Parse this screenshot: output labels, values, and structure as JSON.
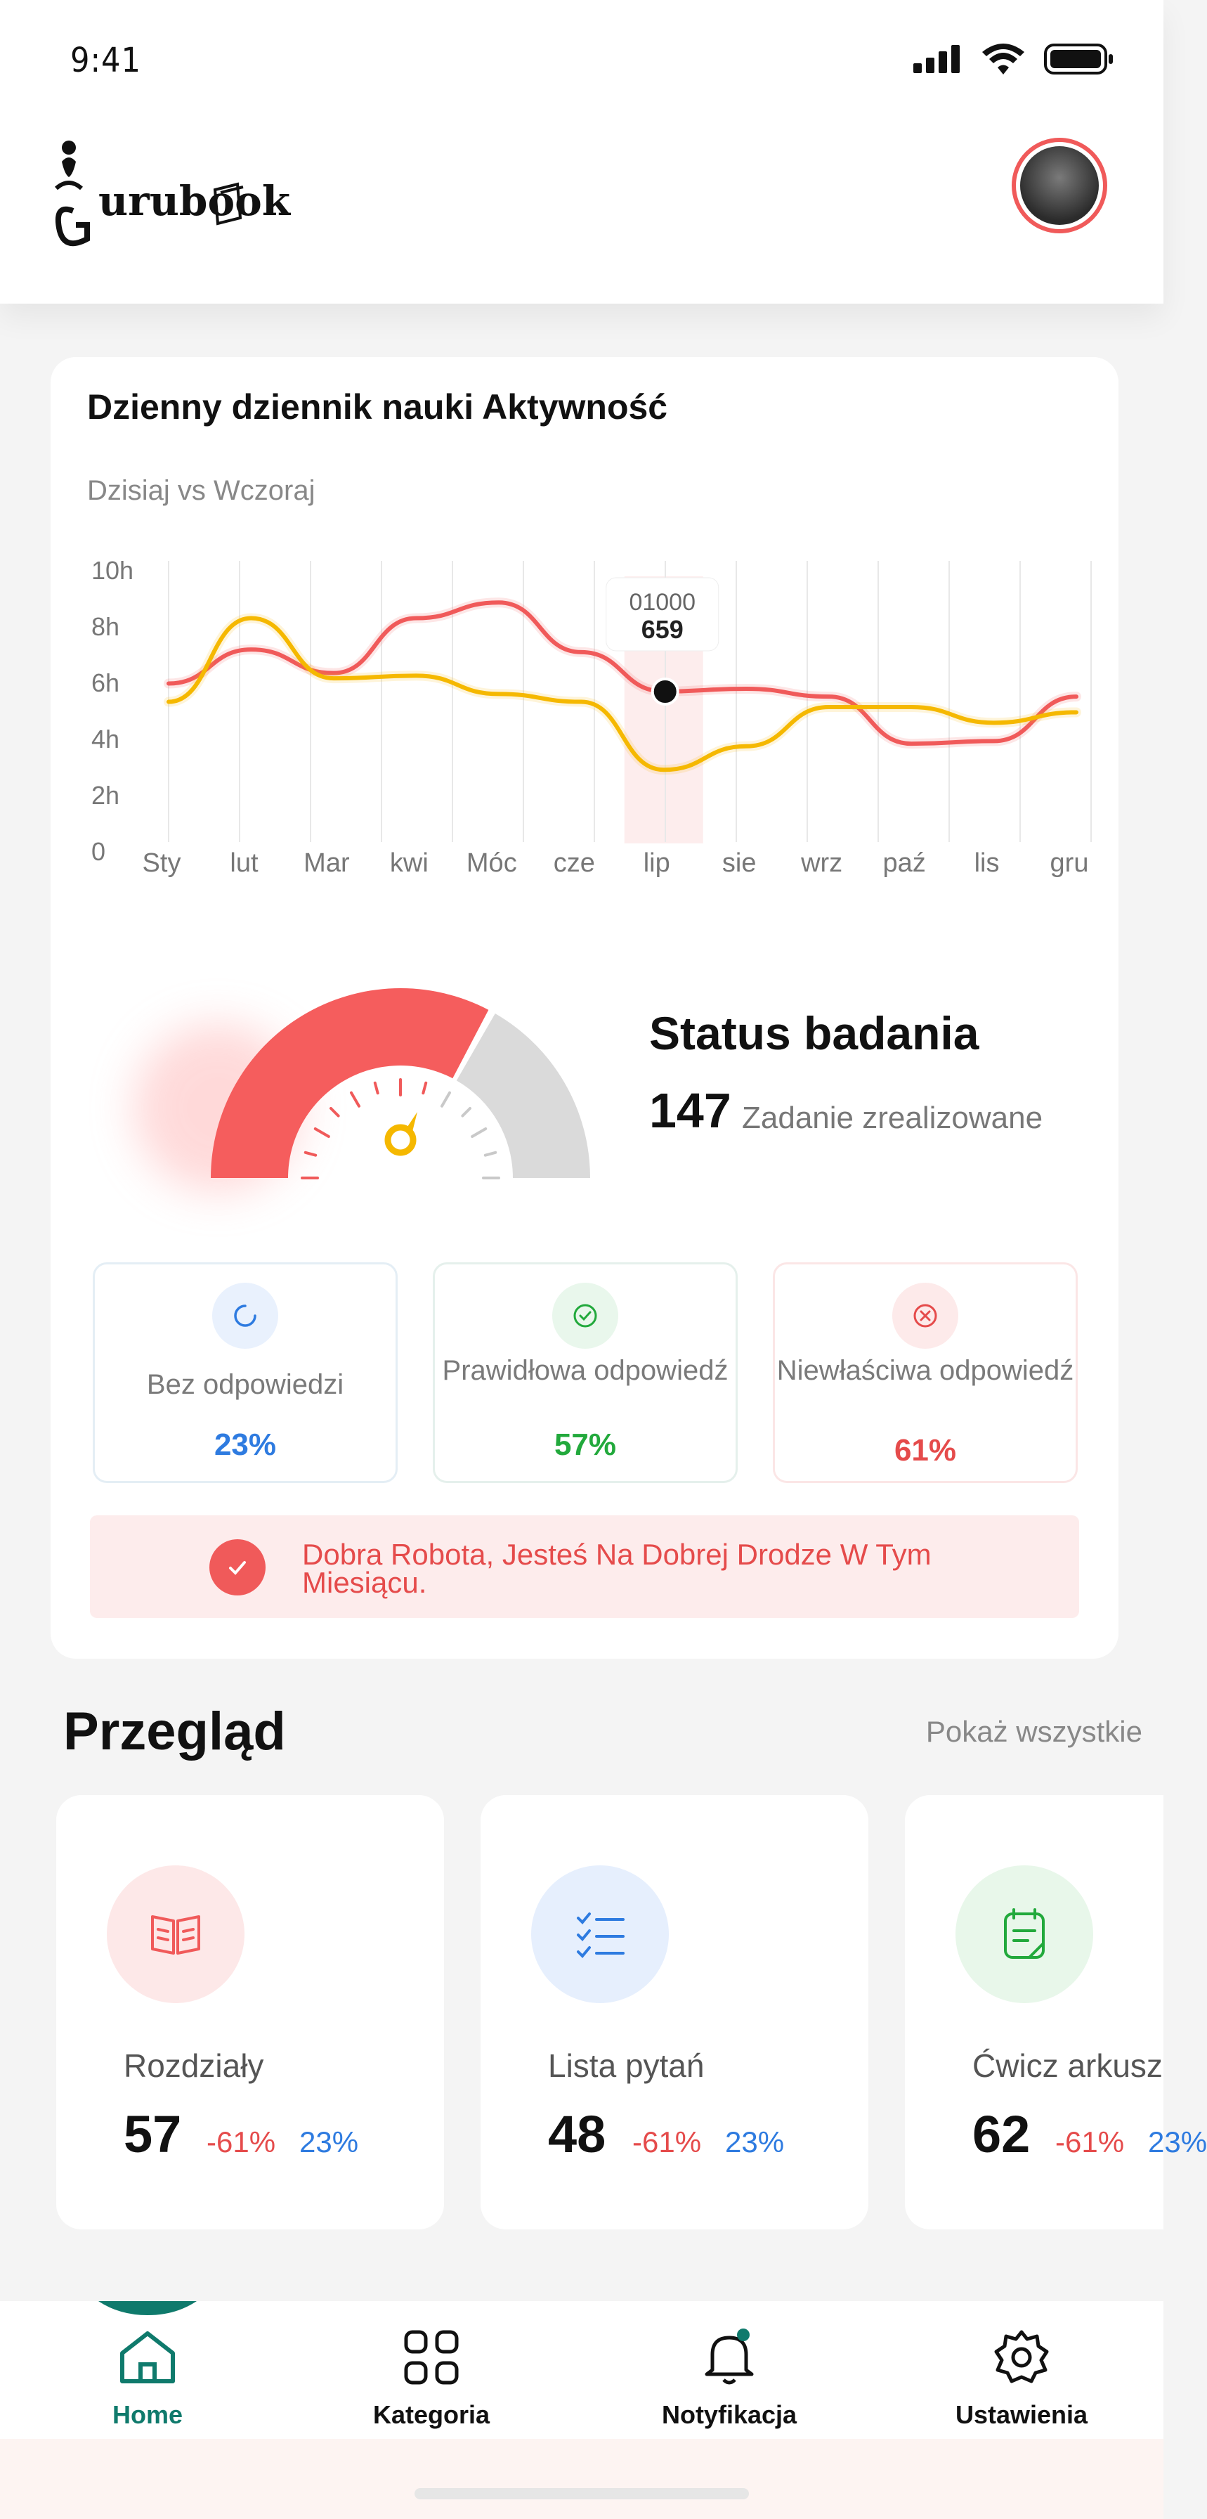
{
  "status_bar": {
    "time": "9:41"
  },
  "header": {
    "logo_text": "urubook"
  },
  "activity": {
    "title": "Dzienny dziennik nauki Aktywność",
    "subtitle": "Dzisiaj vs Wczoraj",
    "tooltip": {
      "line1": "01000",
      "line2": "659"
    }
  },
  "chart_data": {
    "type": "line",
    "title": "Dzienny dziennik nauki Aktywność",
    "subtitle": "Dzisiaj vs Wczoraj",
    "categories": [
      "Sty",
      "lut",
      "Mar",
      "kwi",
      "Móc",
      "cze",
      "lip",
      "sie",
      "wrz",
      "paź",
      "lis",
      "gru"
    ],
    "y_ticks": [
      "10h",
      "8h",
      "6h",
      "4h",
      "2h",
      "0"
    ],
    "ylim": [
      0,
      10
    ],
    "grid": "vertical",
    "series": [
      {
        "color": "#f05a5a",
        "values": [
          5.9,
          7.2,
          6.3,
          8.4,
          9.0,
          7.1,
          5.6,
          5.7,
          5.4,
          3.6,
          3.7,
          5.4
        ]
      },
      {
        "color": "#f5b800",
        "values": [
          5.2,
          8.4,
          6.1,
          6.2,
          5.5,
          5.2,
          2.6,
          3.5,
          5.0,
          5.0,
          4.4,
          4.8
        ]
      }
    ],
    "highlight": {
      "category": "lip",
      "label_top": "01000",
      "label_bottom": "659"
    }
  },
  "study_status": {
    "title": "Status badania",
    "count": "147",
    "count_label": "Zadanie zrealizowane",
    "gauge_fraction": 0.66
  },
  "stats": [
    {
      "label": "Bez odpowiedzi",
      "pct": "23%",
      "icon": "loading-icon",
      "color": "#2e7be0"
    },
    {
      "label": "Prawidłowa odpowiedź",
      "pct": "57%",
      "icon": "check-circle-icon",
      "color": "#22a93c"
    },
    {
      "label": "Niewłaściwa odpowiedź",
      "pct": "61%",
      "icon": "x-circle-icon",
      "color": "#e54b4b"
    }
  ],
  "banner": {
    "text": "Dobra Robota, Jesteś Na Dobrej Drodze W Tym Miesiącu."
  },
  "overview": {
    "title": "Przegląd",
    "show_all": "Pokaż wszystkie",
    "cards": [
      {
        "name": "Rozdziały",
        "count": "57",
        "neg": "-61%",
        "pos": "23%",
        "icon": "book-icon"
      },
      {
        "name": "Lista pytań",
        "count": "48",
        "neg": "-61%",
        "pos": "23%",
        "icon": "list-icon"
      },
      {
        "name": "Ćwicz arkusz",
        "count": "62",
        "neg": "-61%",
        "pos": "23%",
        "icon": "worksheet-icon"
      }
    ]
  },
  "nav": [
    {
      "label": "Home",
      "icon": "home-icon",
      "active": true
    },
    {
      "label": "Kategoria",
      "icon": "grid-icon"
    },
    {
      "label": "Notyfikacja",
      "icon": "bell-icon"
    },
    {
      "label": "Ustawienia",
      "icon": "gear-icon"
    }
  ]
}
